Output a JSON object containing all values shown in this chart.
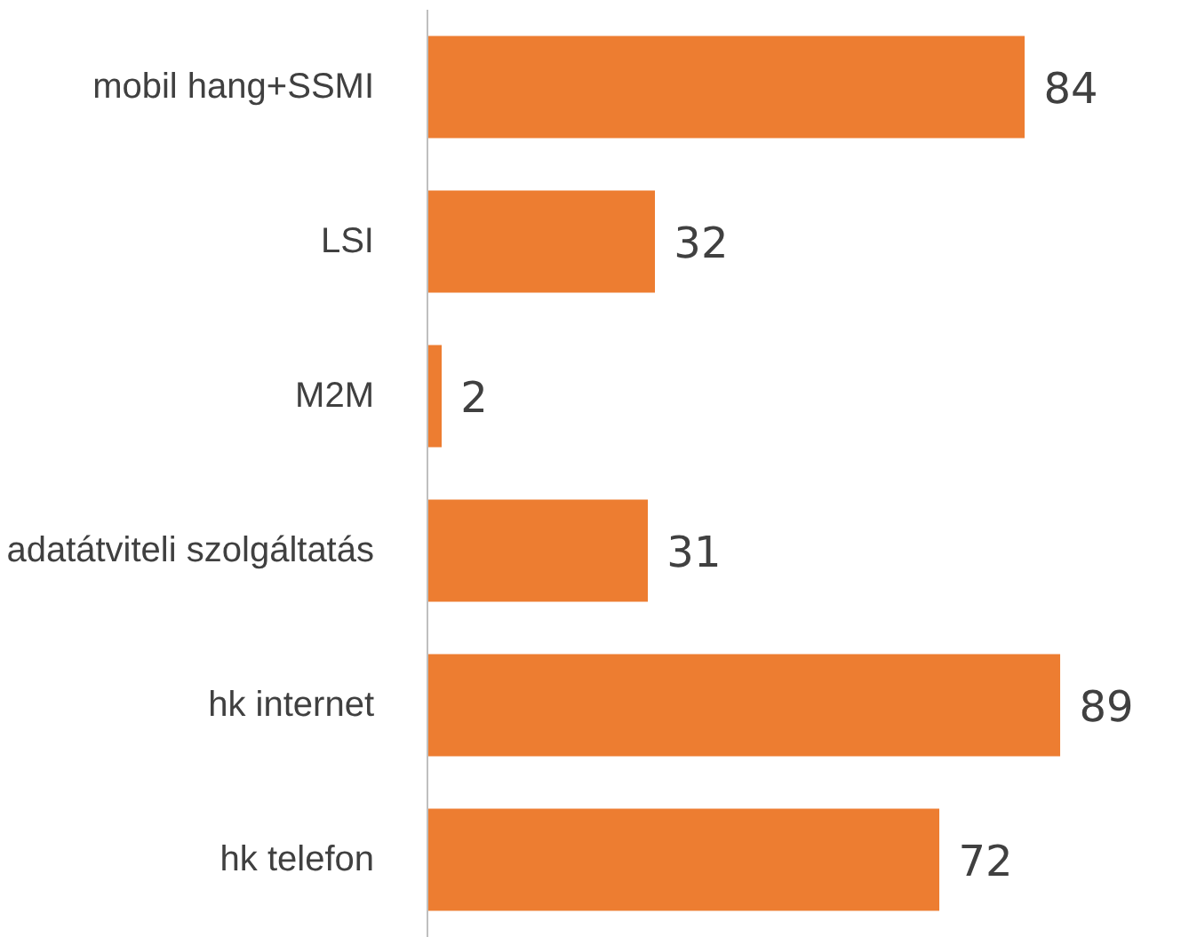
{
  "chart_data": {
    "type": "bar",
    "orientation": "horizontal",
    "categories": [
      "mobil hang+SSMI",
      "LSI",
      "M2M",
      "adatátviteli szolgáltatás",
      "hk internet",
      "hk telefon"
    ],
    "values": [
      84,
      32,
      2,
      31,
      89,
      72
    ],
    "color": "#ed7d31",
    "data_labels": true,
    "grid": false
  }
}
